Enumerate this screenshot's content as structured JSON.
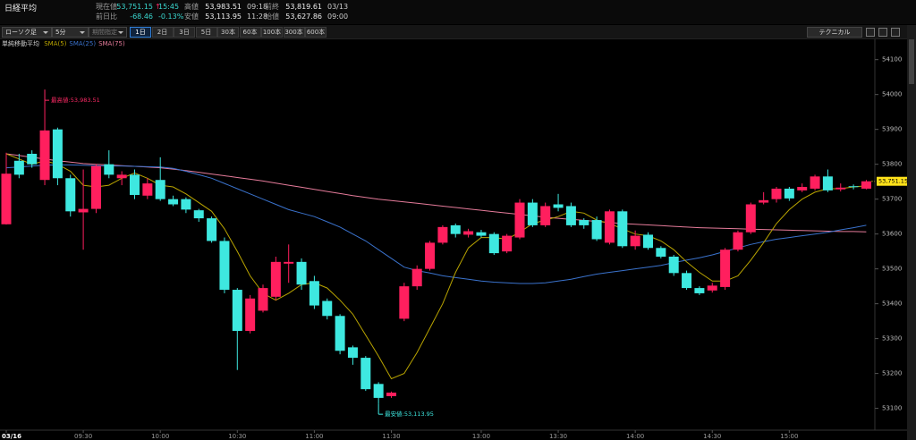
{
  "header": {
    "title": "日経平均",
    "fields": [
      {
        "label": "現在値",
        "value": "53,751.15",
        "mark": "↑",
        "note": "15:45"
      },
      {
        "label": "前日比",
        "value": "-68.46",
        "note": "-0.13%"
      },
      {
        "label": "高値",
        "value": "53,983.51",
        "note": "09:18"
      },
      {
        "label": "安値",
        "value": "53,113.95",
        "note": "11:28"
      },
      {
        "label": "前終",
        "value": "53,819.61",
        "note": "03/13"
      },
      {
        "label": "始値",
        "value": "53,627.86",
        "note": "09:00"
      }
    ]
  },
  "toolbar": {
    "chart_type": "ローソク足",
    "interval": "5分",
    "period": "期間指定",
    "ranges": [
      "1日",
      "2日",
      "3日",
      "5日",
      "30本",
      "60本",
      "100本",
      "300本",
      "600本"
    ],
    "active_range": 0,
    "technical": "テクニカル"
  },
  "chart_data": {
    "type": "candlestick",
    "indicator": "単純移動平均",
    "up_color": "#ff1f5e",
    "down_color": "#3ee8e0",
    "categories": [
      "03/16",
      null,
      null,
      null,
      null,
      null,
      "09:30",
      null,
      null,
      null,
      null,
      null,
      "10:00",
      null,
      null,
      null,
      null,
      null,
      "10:30",
      null,
      null,
      null,
      null,
      null,
      "11:00",
      null,
      null,
      null,
      null,
      null,
      "11:30",
      null,
      null,
      null,
      null,
      null,
      null,
      "13:00",
      null,
      null,
      null,
      null,
      null,
      "13:30",
      null,
      null,
      null,
      null,
      null,
      "14:00",
      null,
      null,
      null,
      null,
      null,
      "14:30",
      null,
      null,
      null,
      null,
      null,
      "15:00",
      null,
      null,
      null,
      null,
      null,
      null
    ],
    "open": [
      53627.86,
      53810,
      53830,
      53755,
      53900,
      53760,
      53662,
      53672,
      53800,
      53760,
      53770,
      53710,
      53755,
      53700,
      53700,
      53668,
      53645,
      53580,
      53440,
      53322,
      53380,
      53420,
      53515,
      53520,
      53465,
      53408,
      53365,
      53275,
      53245,
      53170,
      53135,
      53357,
      53450,
      53500,
      53575,
      53625,
      53598,
      53605,
      53600,
      53550,
      53590,
      53690,
      53625,
      53685,
      53680,
      53640,
      53640,
      53575,
      53665,
      53565,
      53598,
      53560,
      53535,
      53488,
      53445,
      53438,
      53448,
      53555,
      53605,
      53690,
      53700,
      53730,
      53725,
      53730,
      53765,
      53728,
      53737,
      53730
    ],
    "high": [
      53833,
      53830,
      53840,
      53983.51,
      53905,
      53770,
      53785,
      53800,
      53840,
      53780,
      53785,
      53760,
      53820,
      53710,
      53705,
      53672,
      53650,
      53590,
      53445,
      53425,
      53455,
      53535,
      53570,
      53530,
      53480,
      53415,
      53370,
      53280,
      53250,
      53175,
      53148,
      53460,
      53510,
      53580,
      53625,
      53630,
      53615,
      53612,
      53605,
      53600,
      53700,
      53700,
      53690,
      53715,
      53690,
      53645,
      53650,
      53670,
      53670,
      53610,
      53605,
      53565,
      53540,
      53495,
      53450,
      53460,
      53560,
      53610,
      53690,
      53720,
      53735,
      53735,
      53745,
      53770,
      53785,
      53745,
      53742,
      53755
    ],
    "low": [
      53627,
      53760,
      53790,
      53740,
      53740,
      53650,
      53555,
      53660,
      53760,
      53740,
      53700,
      53700,
      53695,
      53680,
      53660,
      53635,
      53575,
      53430,
      53210,
      53315,
      53375,
      53410,
      53460,
      53440,
      53385,
      53355,
      53255,
      53225,
      53150,
      53113.95,
      53130,
      53350,
      53440,
      53495,
      53570,
      53590,
      53590,
      53590,
      53540,
      53545,
      53585,
      53620,
      53620,
      53665,
      53620,
      53615,
      53580,
      53570,
      53560,
      53555,
      53555,
      53530,
      53480,
      53440,
      53425,
      53432,
      53440,
      53550,
      53600,
      53685,
      53690,
      53695,
      53720,
      53725,
      53720,
      53722,
      53728,
      53728
    ],
    "close": [
      53773,
      53770,
      53800,
      53897,
      53760,
      53665,
      53672,
      53795,
      53770,
      53770,
      53712,
      53745,
      53700,
      53685,
      53670,
      53645,
      53580,
      53440,
      53322,
      53415,
      53445,
      53520,
      53520,
      53455,
      53395,
      53365,
      53265,
      53245,
      53155,
      53130,
      53145,
      53450,
      53500,
      53575,
      53620,
      53600,
      53608,
      53595,
      53545,
      53595,
      53690,
      53625,
      53680,
      53675,
      53625,
      53625,
      53585,
      53665,
      53565,
      53595,
      53560,
      53535,
      53488,
      53445,
      53430,
      53452,
      53555,
      53605,
      53685,
      53697,
      53730,
      53702,
      53735,
      53765,
      53725,
      53733,
      53735,
      53751.15
    ],
    "close_label": "53,751.15",
    "close_label_color": "#ffe21a",
    "series": [
      {
        "name": "SMA(5)",
        "color": "#b9a400",
        "values": [
          53830,
          53815,
          53800,
          53810,
          53800,
          53780,
          53740,
          53735,
          53740,
          53760,
          53775,
          53760,
          53740,
          53735,
          53715,
          53690,
          53665,
          53615,
          53550,
          53480,
          53430,
          53410,
          53430,
          53455,
          53460,
          53445,
          53410,
          53370,
          53310,
          53250,
          53185,
          53200,
          53260,
          53330,
          53400,
          53490,
          53560,
          53590,
          53590,
          53585,
          53605,
          53630,
          53640,
          53650,
          53665,
          53660,
          53640,
          53630,
          53615,
          53600,
          53595,
          53580,
          53555,
          53520,
          53490,
          53465,
          53465,
          53480,
          53525,
          53575,
          53630,
          53670,
          53700,
          53720,
          53730,
          53730,
          53735,
          53738
        ]
      },
      {
        "name": "SMA(25)",
        "color": "#3a72cc",
        "values": [
          53790,
          53792,
          53795,
          53797,
          53798,
          53798,
          53797,
          53796,
          53795,
          53795,
          53794,
          53793,
          53792,
          53788,
          53780,
          53770,
          53760,
          53745,
          53730,
          53715,
          53700,
          53685,
          53670,
          53660,
          53650,
          53635,
          53620,
          53600,
          53580,
          53555,
          53530,
          53505,
          53495,
          53488,
          53480,
          53475,
          53470,
          53465,
          53462,
          53460,
          53458,
          53458,
          53460,
          53465,
          53470,
          53478,
          53485,
          53490,
          53495,
          53500,
          53505,
          53510,
          53518,
          53525,
          53532,
          53540,
          53550,
          53560,
          53570,
          53578,
          53585,
          53590,
          53595,
          53600,
          53605,
          53612,
          53618,
          53625
        ]
      },
      {
        "name": "SMA(75)",
        "color": "#e57b9a",
        "values": [
          53830,
          53825,
          53820,
          53815,
          53810,
          53806,
          53802,
          53800,
          53798,
          53796,
          53794,
          53792,
          53790,
          53786,
          53782,
          53777,
          53772,
          53767,
          53762,
          53757,
          53752,
          53746,
          53740,
          53734,
          53728,
          53722,
          53716,
          53710,
          53705,
          53700,
          53696,
          53692,
          53688,
          53684,
          53680,
          53676,
          53672,
          53668,
          53664,
          53660,
          53656,
          53652,
          53648,
          53645,
          53642,
          53639,
          53636,
          53633,
          53630,
          53628,
          53626,
          53624,
          53622,
          53620,
          53618,
          53617,
          53616,
          53615,
          53614,
          53613,
          53612,
          53611,
          53610,
          53609,
          53608,
          53607,
          53607,
          53606
        ]
      }
    ],
    "annotations": [
      {
        "text": "最高値:53,983.51",
        "anchor": "high",
        "color": "#ff2a66"
      },
      {
        "text": "最安値:53,113.95",
        "anchor": "low",
        "color": "#3ee8e0"
      }
    ],
    "ylim": [
      53040,
      54130
    ],
    "yticks": [
      53100,
      53200,
      53300,
      53400,
      53500,
      53600,
      53700,
      53800,
      53900,
      54000,
      54100
    ]
  }
}
